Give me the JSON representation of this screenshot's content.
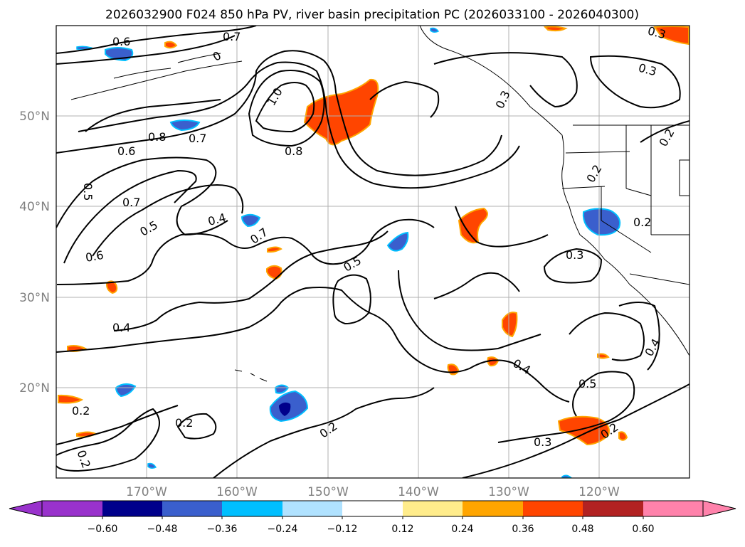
{
  "title": "2026032900 F024 850 hPa PV, river basin precipitation PC (2026033100 - 2026040300)",
  "map": {
    "lon_ticks": [
      "170°W",
      "160°W",
      "150°W",
      "140°W",
      "130°W",
      "120°W"
    ],
    "lat_ticks": [
      "50°N",
      "40°N",
      "30°N",
      "20°N"
    ],
    "grid": true,
    "land_color": "#ffffff",
    "contour_color": "#000000"
  },
  "contour_labels": [
    {
      "text": "0.6",
      "key": "a"
    },
    {
      "text": "0.7",
      "key": "b"
    },
    {
      "text": "0.8",
      "key": "c"
    },
    {
      "text": "0.7",
      "key": "d"
    },
    {
      "text": "0.6",
      "key": "e"
    },
    {
      "text": "0.5",
      "key": "f"
    },
    {
      "text": "0.7",
      "key": "g"
    },
    {
      "text": "0.5",
      "key": "h"
    },
    {
      "text": "0.4",
      "key": "i"
    },
    {
      "text": "0.7",
      "key": "j"
    },
    {
      "text": "0.6",
      "key": "k"
    },
    {
      "text": "1.0",
      "key": "l"
    },
    {
      "text": "0.8",
      "key": "m"
    },
    {
      "text": "0.5",
      "key": "n"
    },
    {
      "text": "0.4",
      "key": "o"
    },
    {
      "text": "0.2",
      "key": "p"
    },
    {
      "text": "0.2",
      "key": "q"
    },
    {
      "text": "0.2",
      "key": "r"
    },
    {
      "text": "0.2",
      "key": "s"
    },
    {
      "text": "0.3",
      "key": "t"
    },
    {
      "text": "0.3",
      "key": "u"
    },
    {
      "text": "0.2",
      "key": "v"
    },
    {
      "text": "0.2",
      "key": "w"
    },
    {
      "text": "0.2",
      "key": "x"
    },
    {
      "text": "0.3",
      "key": "y"
    },
    {
      "text": "0.4",
      "key": "z"
    },
    {
      "text": "0.4",
      "key": "aa"
    },
    {
      "text": "0.5",
      "key": "ab"
    },
    {
      "text": "0.3",
      "key": "ac"
    },
    {
      "text": "0.2",
      "key": "ad"
    },
    {
      "text": "0.3",
      "key": "ae"
    },
    {
      "text": "0",
      "key": "af"
    }
  ],
  "colorbar": {
    "ticks": [
      "−0.60",
      "−0.48",
      "−0.36",
      "−0.24",
      "−0.12",
      "0.12",
      "0.24",
      "0.36",
      "0.48",
      "0.60"
    ],
    "colors": [
      "#9932cc",
      "#00008b",
      "#3a5fcd",
      "#00bfff",
      "#b0e2ff",
      "#ffffff",
      "#ffec8b",
      "#ffa500",
      "#ff4500",
      "#b22222",
      "#ff82ab"
    ]
  }
}
